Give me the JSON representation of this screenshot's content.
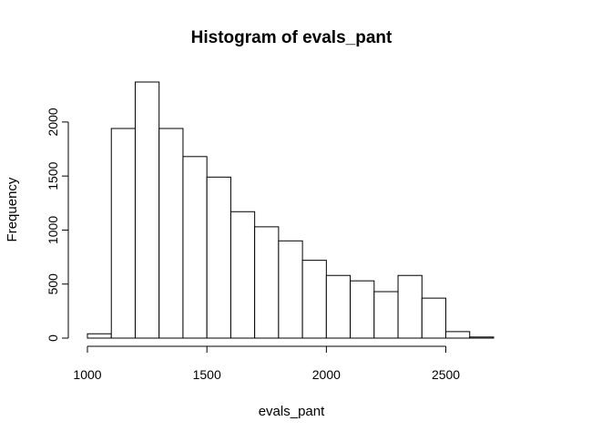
{
  "chart_data": {
    "type": "bar",
    "title": "Histogram of evals_pant",
    "xlabel": "evals_pant",
    "ylabel": "Frequency",
    "bin_edges": [
      1000,
      1100,
      1200,
      1300,
      1400,
      1500,
      1600,
      1700,
      1800,
      1900,
      2000,
      2100,
      2200,
      2300,
      2400,
      2500,
      2600,
      2700
    ],
    "values": [
      40,
      1940,
      2370,
      1940,
      1680,
      1490,
      1170,
      1030,
      900,
      720,
      580,
      530,
      430,
      580,
      370,
      60,
      10
    ],
    "xlim": [
      1000,
      2700
    ],
    "ylim": [
      0,
      2370
    ],
    "x_ticks": [
      1000,
      1500,
      2000,
      2500
    ],
    "y_ticks": [
      0,
      500,
      1000,
      1500,
      2000
    ],
    "x_tick_labels": [
      "1000",
      "1500",
      "2000",
      "2500"
    ],
    "y_tick_labels": [
      "0",
      "500",
      "1000",
      "1500",
      "2000"
    ],
    "grid": false,
    "bar_fill": "#ffffff",
    "bar_stroke": "#000000"
  }
}
